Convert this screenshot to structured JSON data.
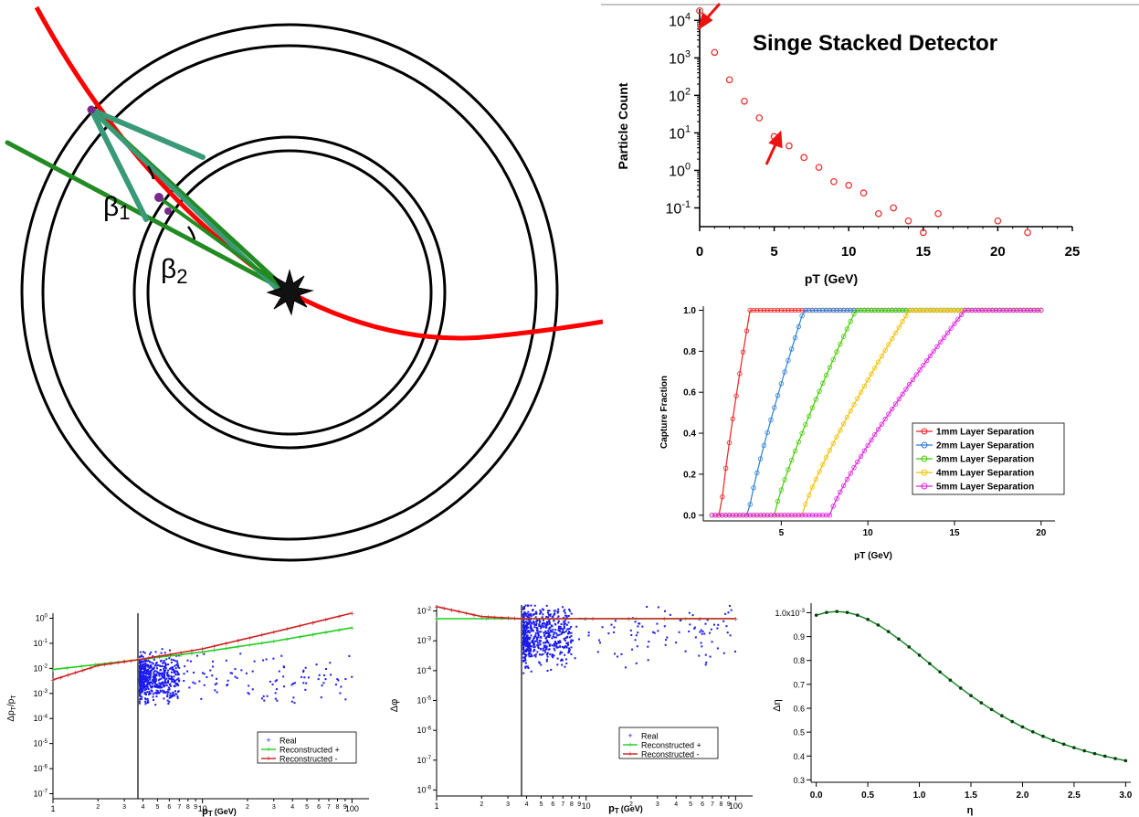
{
  "diagram": {
    "beta1_symbol": "β",
    "beta1_subscript": "1",
    "beta2_symbol": "β",
    "beta2_subscript": "2"
  },
  "colors": {
    "track_red": "#ff0000",
    "line_green": "#228b22",
    "line_teal": "#3a9a78",
    "hit_purple": "#7a2a8a",
    "real_blue": "#1a1aee",
    "recon_plus_green": "#22cc22",
    "recon_minus_red": "#cc2222",
    "eta_green": "#1a8a2a"
  },
  "chart_data": [
    {
      "id": "particle-count",
      "type": "scatter",
      "title": "Singe Stacked Detector",
      "xlabel": "pT (GeV)",
      "ylabel": "Particle Count",
      "xlim": [
        0,
        25
      ],
      "ylim_log10": [
        -1.5,
        4.3
      ],
      "yscale": "log",
      "xticks": [
        "0",
        "5",
        "10",
        "15",
        "20",
        "25"
      ],
      "yticks": [
        {
          "base": "10",
          "exp": "4",
          "p": 4
        },
        {
          "base": "10",
          "exp": "3",
          "p": 3
        },
        {
          "base": "10",
          "exp": "2",
          "p": 2
        },
        {
          "base": "10",
          "exp": "1",
          "p": 1
        },
        {
          "base": "10",
          "exp": "0",
          "p": 0
        },
        {
          "base": "10",
          "exp": "-1",
          "p": -1
        }
      ],
      "points": [
        {
          "x": 0,
          "y": 18000
        },
        {
          "x": 1,
          "y": 1400
        },
        {
          "x": 2,
          "y": 260
        },
        {
          "x": 3,
          "y": 70
        },
        {
          "x": 4,
          "y": 25
        },
        {
          "x": 5,
          "y": 8
        },
        {
          "x": 6,
          "y": 4.5
        },
        {
          "x": 7,
          "y": 2.2
        },
        {
          "x": 8,
          "y": 1.2
        },
        {
          "x": 9,
          "y": 0.5
        },
        {
          "x": 10,
          "y": 0.4
        },
        {
          "x": 11,
          "y": 0.25
        },
        {
          "x": 12,
          "y": 0.07
        },
        {
          "x": 13,
          "y": 0.1
        },
        {
          "x": 14,
          "y": 0.045
        },
        {
          "x": 15,
          "y": 0.022
        },
        {
          "x": 16,
          "y": 0.07
        },
        {
          "x": 20,
          "y": 0.045
        },
        {
          "x": 22,
          "y": 0.022
        }
      ],
      "series_color": "#ee3333"
    },
    {
      "id": "capture-fraction",
      "type": "line",
      "xlabel": "pT (GeV)",
      "ylabel": "Capture Fraction",
      "xlim": [
        0.5,
        20.8
      ],
      "ylim": [
        -0.01,
        1.02
      ],
      "xticks": [
        "5",
        "10",
        "15",
        "20"
      ],
      "yticks": [
        "0.0",
        "0.2",
        "0.4",
        "0.6",
        "0.8",
        "1.0"
      ],
      "x_start": 1,
      "x_end": 20,
      "n_points": 96,
      "series": [
        {
          "name": "1mm Layer Separation",
          "x0": 1.5,
          "x1": 3.2,
          "color": "#ee2222"
        },
        {
          "name": "2mm Layer Separation",
          "x0": 3.1,
          "x1": 6.3,
          "color": "#2a7fd4"
        },
        {
          "name": "3mm Layer Separation",
          "x0": 4.6,
          "x1": 9.3,
          "color": "#44cc00"
        },
        {
          "name": "4mm Layer Separation",
          "x0": 6.2,
          "x1": 12.4,
          "color": "#f0c000"
        },
        {
          "name": "5mm Layer Separation",
          "x0": 7.8,
          "x1": 15.6,
          "color": "#e020e0"
        }
      ],
      "legend_position": "right"
    },
    {
      "id": "dpt-over-pt",
      "type": "scatter",
      "ylabel_main": "Δp",
      "ylabel_sub1": "T",
      "ylabel_mid": "/p",
      "ylabel_sub2": "T",
      "xlabel_main": "p",
      "xlabel_sub": "T",
      "xlabel_unit": "(GeV)",
      "xscale": "log",
      "yscale": "log",
      "xlim": [
        1,
        130
      ],
      "ylim_log10": [
        -7.2,
        0.2
      ],
      "xticks": [
        "1",
        "2",
        "3",
        "4",
        "5",
        "6",
        "7",
        "8",
        "9",
        "10",
        "2",
        "3",
        "4",
        "5",
        "6",
        "7",
        "8",
        "9",
        "100"
      ],
      "yticks": [
        {
          "base": "10",
          "exp": "0",
          "p": 0
        },
        {
          "base": "10",
          "exp": "-1",
          "p": -1
        },
        {
          "base": "10",
          "exp": "-2",
          "p": -2
        },
        {
          "base": "10",
          "exp": "-3",
          "p": -3
        },
        {
          "base": "10",
          "exp": "-4",
          "p": -4
        },
        {
          "base": "10",
          "exp": "-5",
          "p": -5
        },
        {
          "base": "10",
          "exp": "-6",
          "p": -6
        },
        {
          "base": "10",
          "exp": "-7",
          "p": -7
        }
      ],
      "cut_x": 3.7,
      "legend": [
        "Real",
        "Reconstructed +",
        "Reconstructed -"
      ],
      "recon_plus": [
        [
          1,
          0.009
        ],
        [
          3.7,
          0.022
        ],
        [
          10,
          0.045
        ],
        [
          30,
          0.12
        ],
        [
          100,
          0.42
        ]
      ],
      "recon_minus": [
        [
          1,
          0.0035
        ],
        [
          2,
          0.013
        ],
        [
          3.7,
          0.022
        ],
        [
          10,
          0.06
        ],
        [
          30,
          0.28
        ],
        [
          100,
          1.6
        ]
      ]
    },
    {
      "id": "dphi",
      "type": "scatter",
      "ylabel": "Δφ",
      "xlabel_main": "p",
      "xlabel_sub": "T",
      "xlabel_unit": "(GeV)",
      "xscale": "log",
      "yscale": "log",
      "xlim": [
        1,
        130
      ],
      "ylim_log10": [
        -8.2,
        -1.8
      ],
      "xticks": [
        "1",
        "2",
        "3",
        "4",
        "5",
        "6",
        "7",
        "8",
        "9",
        "10",
        "2",
        "3",
        "4",
        "5",
        "6",
        "7",
        "8",
        "9",
        "100"
      ],
      "yticks": [
        {
          "base": "10",
          "exp": "-2",
          "p": -2
        },
        {
          "base": "10",
          "exp": "-3",
          "p": -3
        },
        {
          "base": "10",
          "exp": "-4",
          "p": -4
        },
        {
          "base": "10",
          "exp": "-5",
          "p": -5
        },
        {
          "base": "10",
          "exp": "-6",
          "p": -6
        },
        {
          "base": "10",
          "exp": "-7",
          "p": -7
        },
        {
          "base": "10",
          "exp": "-8",
          "p": -8
        }
      ],
      "cut_x": 3.7,
      "legend": [
        "Real",
        "Reconstructed +",
        "Reconstructed -"
      ],
      "recon_plus": [
        [
          1,
          0.0055
        ],
        [
          100,
          0.0055
        ]
      ],
      "recon_minus": [
        [
          1,
          0.014
        ],
        [
          2,
          0.0065
        ],
        [
          3.7,
          0.0055
        ],
        [
          100,
          0.0055
        ]
      ]
    },
    {
      "id": "deta",
      "type": "line",
      "xlabel": "η",
      "ylabel": "Δη",
      "xlim": [
        -0.05,
        3.05
      ],
      "ylim": [
        0.29,
        1.04
      ],
      "xticks": [
        "0.0",
        "0.5",
        "1.0",
        "1.5",
        "2.0",
        "2.5",
        "3.0"
      ],
      "yticks": [
        "1.0x10",
        "0.9",
        "0.8",
        "0.7",
        "0.6",
        "0.5",
        "0.4",
        "0.3"
      ],
      "ytick_top_exp": "-3",
      "x_start": 0,
      "x_end": 3,
      "n_points": 31,
      "curve": "y = 1 - 0.705*(1 - 1/cosh(η-0.2)), scaled 1e-3"
    }
  ]
}
